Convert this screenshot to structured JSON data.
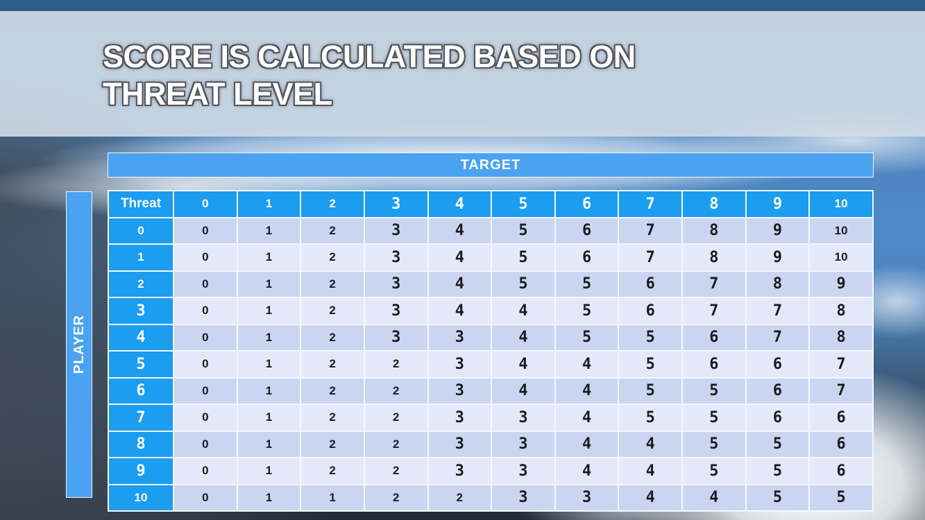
{
  "slide": {
    "title_line1": "SCORE IS CALCULATED BASED ON",
    "title_line2": "THREAT LEVEL"
  },
  "matrix": {
    "target_label": "TARGET",
    "player_label": "PLAYER",
    "corner_label": "Threat",
    "column_headers": [
      "0",
      "1",
      "2",
      "3",
      "4",
      "5",
      "6",
      "7",
      "8",
      "9",
      "10"
    ],
    "rows": [
      {
        "header": "0",
        "values": [
          0,
          1,
          2,
          3,
          4,
          5,
          6,
          7,
          8,
          9,
          10
        ]
      },
      {
        "header": "1",
        "values": [
          0,
          1,
          2,
          3,
          4,
          5,
          6,
          7,
          8,
          9,
          10
        ]
      },
      {
        "header": "2",
        "values": [
          0,
          1,
          2,
          3,
          4,
          5,
          5,
          6,
          7,
          8,
          9
        ]
      },
      {
        "header": "3",
        "values": [
          0,
          1,
          2,
          3,
          4,
          4,
          5,
          6,
          7,
          7,
          8
        ]
      },
      {
        "header": "4",
        "values": [
          0,
          1,
          2,
          3,
          3,
          4,
          5,
          5,
          6,
          7,
          8
        ]
      },
      {
        "header": "5",
        "values": [
          0,
          1,
          2,
          2,
          3,
          4,
          4,
          5,
          6,
          6,
          7
        ]
      },
      {
        "header": "6",
        "values": [
          0,
          1,
          2,
          2,
          3,
          4,
          4,
          5,
          5,
          6,
          7
        ]
      },
      {
        "header": "7",
        "values": [
          0,
          1,
          2,
          2,
          3,
          3,
          4,
          5,
          5,
          6,
          6
        ]
      },
      {
        "header": "8",
        "values": [
          0,
          1,
          2,
          2,
          3,
          3,
          4,
          4,
          5,
          5,
          6
        ]
      },
      {
        "header": "9",
        "values": [
          0,
          1,
          2,
          2,
          3,
          3,
          4,
          4,
          5,
          5,
          6
        ]
      },
      {
        "header": "10",
        "values": [
          0,
          1,
          1,
          2,
          2,
          3,
          3,
          4,
          4,
          5,
          5
        ]
      }
    ]
  },
  "colors": {
    "header_blue": "#1b9df0",
    "band_blue": "#4aa3f0",
    "row_even": "#cad6f1",
    "row_odd": "#e3e9f8",
    "top_bar": "#2d5c8a",
    "title_text": "#ffffff",
    "title_outline": "#55555e"
  }
}
